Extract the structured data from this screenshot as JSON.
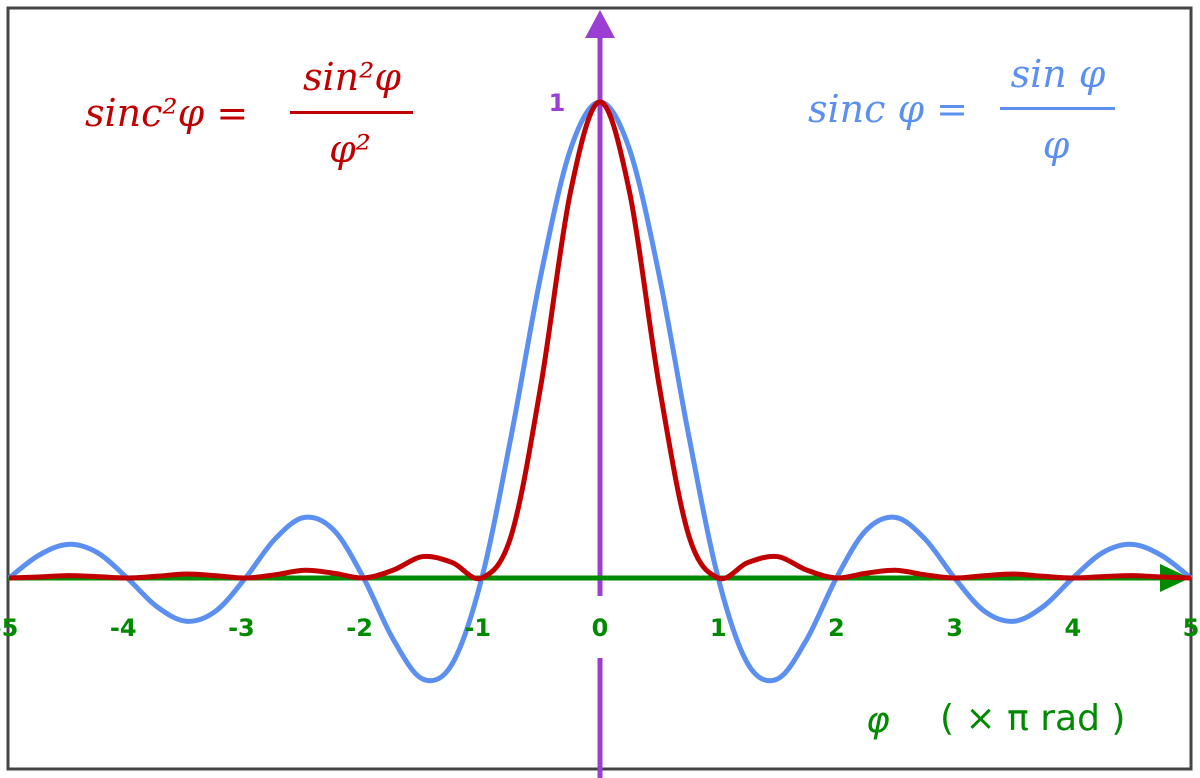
{
  "chart_data": {
    "type": "line",
    "title": "",
    "xlabel": {
      "var": "φ",
      "unit": "( × π  rad )"
    },
    "ylabel": "",
    "xlim": [
      -5,
      5
    ],
    "ylim": [
      -0.25,
      1
    ],
    "grid": false,
    "x_ticks": [
      "-5",
      "-4",
      "-3",
      "-2",
      "-1",
      "0",
      "1",
      "2",
      "3",
      "4",
      "5"
    ],
    "y_ticks": [
      "1"
    ],
    "x": [
      0,
      0.25,
      0.5,
      0.75,
      1,
      1.25,
      1.5,
      1.75,
      2,
      2.25,
      2.5,
      2.75,
      3,
      3.25,
      3.5,
      3.75,
      4,
      4.25,
      4.5,
      4.75,
      5
    ],
    "symmetric_about_zero": true,
    "series": [
      {
        "name": "sinc φ",
        "color": "#5b8ff0",
        "values": [
          1,
          0.9003,
          0.6366,
          0.3001,
          0,
          -0.1801,
          -0.2122,
          -0.1286,
          0,
          0.1,
          0.1273,
          0.0818,
          0,
          -0.0693,
          -0.0909,
          -0.06,
          0,
          0.053,
          0.0707,
          0.0474,
          0
        ]
      },
      {
        "name": "sinc²φ",
        "color": "#c00000",
        "values": [
          1,
          0.8106,
          0.4053,
          0.0901,
          0,
          0.0324,
          0.045,
          0.0165,
          0,
          0.01,
          0.0162,
          0.0067,
          0,
          0.0048,
          0.0083,
          0.0036,
          0,
          0.0028,
          0.005,
          0.0022,
          0
        ]
      }
    ],
    "annotations": {
      "sinc2_formula": {
        "lhs": "sinc²φ =",
        "numerator": "sin²φ",
        "denominator": "φ²",
        "color": "#c00000"
      },
      "sinc_formula": {
        "lhs": "sinc φ =",
        "numerator": "sin φ",
        "denominator": "φ",
        "color": "#5b8ff0"
      }
    },
    "axis_colors": {
      "x": "#008a00",
      "y": "#9b3fd4"
    }
  }
}
